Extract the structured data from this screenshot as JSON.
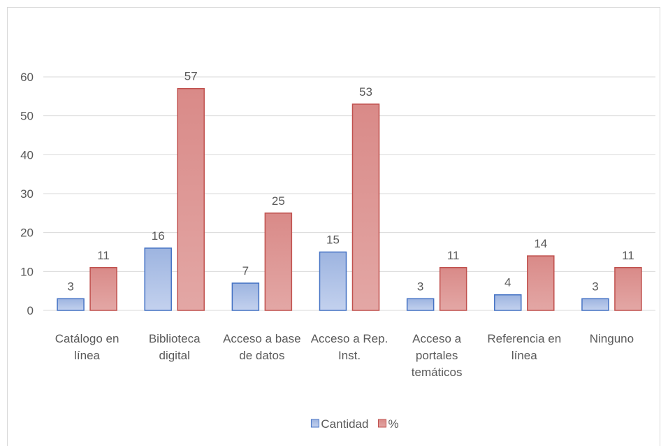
{
  "chart_data": {
    "type": "bar",
    "categories": [
      "Catálogo en línea",
      "Biblioteca digital",
      "Acceso a base de datos",
      "Acceso a Rep. Inst.",
      "Acceso a portales temáticos",
      "Referencia en línea",
      "Ninguno"
    ],
    "series": [
      {
        "name": "Cantidad",
        "color": "#4472c4",
        "values": [
          3,
          16,
          7,
          15,
          3,
          4,
          3
        ]
      },
      {
        "name": "%",
        "color": "#c0504d",
        "values": [
          11,
          57,
          25,
          53,
          11,
          14,
          11
        ]
      }
    ],
    "ylim": [
      0,
      60
    ],
    "yticks": [
      0,
      10,
      20,
      30,
      40,
      50,
      60
    ],
    "grid": true,
    "legend": "bottom"
  }
}
